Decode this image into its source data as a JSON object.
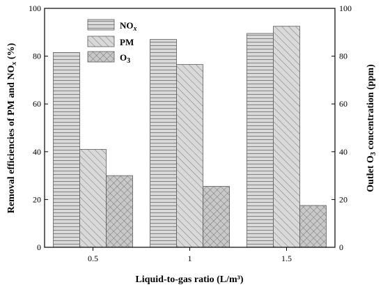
{
  "chart_data": {
    "type": "bar",
    "categories": [
      "0.5",
      "1",
      "1.5"
    ],
    "series": [
      {
        "name": "NO",
        "name_sub": "x",
        "axis": "left",
        "pattern": "horizontal-lines",
        "values": [
          81.5,
          87,
          89.5
        ]
      },
      {
        "name": "PM",
        "name_sub": "",
        "axis": "left",
        "pattern": "diagonal-lines",
        "values": [
          41,
          76.5,
          92.5
        ]
      },
      {
        "name": "O",
        "name_sub": "3",
        "axis": "right",
        "pattern": "crosshatch",
        "values": [
          30,
          25.5,
          17.5
        ]
      }
    ],
    "xlabel": "Liquid-to-gas ratio (L/m³)",
    "ylabel": {
      "pre": "Removal efficiencies of PM and NO",
      "sub": "x",
      "post": " (%)"
    },
    "y2label": {
      "pre": "Outlet O",
      "sub": "3",
      "post": " concentration (ppm)"
    },
    "ylim": [
      0,
      100
    ],
    "y2lim": [
      0,
      100
    ],
    "yticks": [
      0,
      20,
      40,
      60,
      80,
      100
    ],
    "y2ticks": [
      0,
      20,
      40,
      60,
      80,
      100
    ],
    "grid": false,
    "legend_position": "top-left",
    "colors": {
      "bar_fill": "#d9d9d9",
      "bar_stroke": "#5a5a5a",
      "pattern_stroke": "#6b6b6b",
      "axis": "#000000"
    }
  }
}
